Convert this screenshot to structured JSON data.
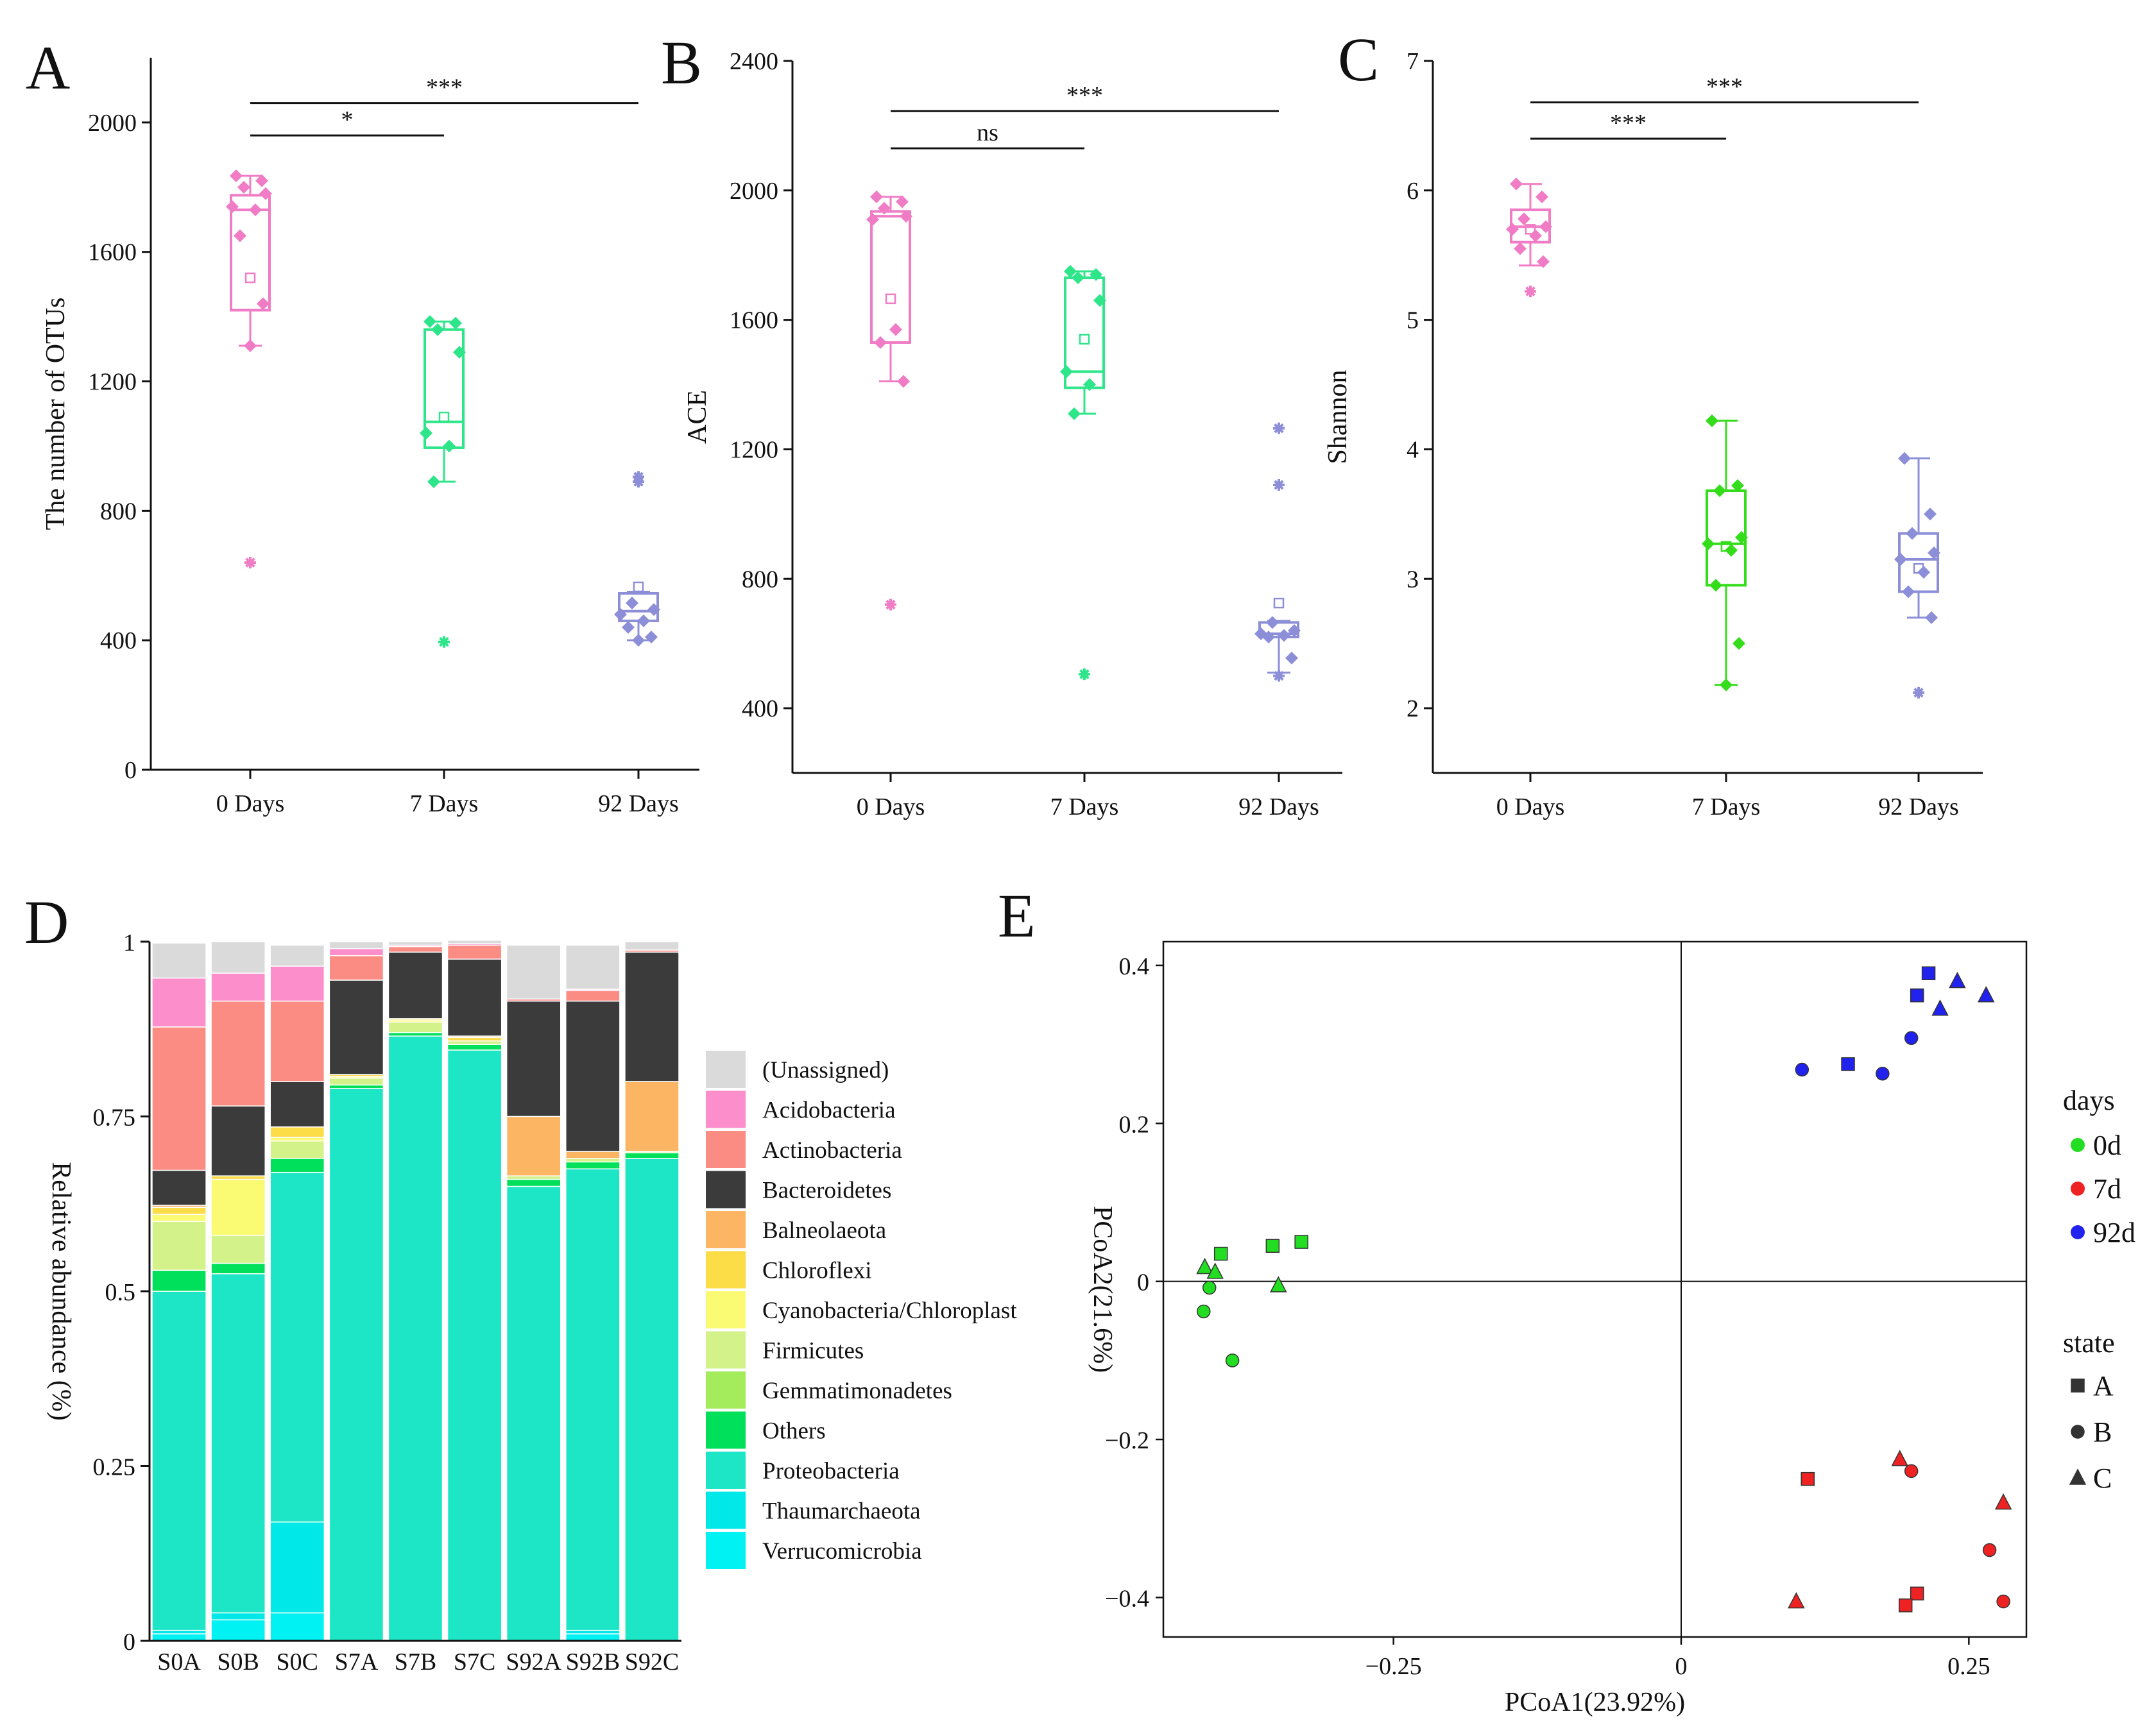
{
  "chart_data": [
    {
      "panel": "A",
      "type": "box",
      "ylabel": "The number of OTUs",
      "categories": [
        "0 Days",
        "7 Days",
        "92 Days"
      ],
      "ylim": [
        0,
        2200
      ],
      "yticks": [
        0,
        400,
        800,
        1200,
        1600,
        2000
      ],
      "colors": [
        "#f07cc6",
        "#2ee58a",
        "#8c8fd8"
      ],
      "boxes": [
        {
          "q1": 1420,
          "median": 1730,
          "q3": 1775,
          "wlo": 1310,
          "whi": 1835,
          "mean": 1520,
          "points": [
            1835,
            1820,
            1800,
            1780,
            1740,
            1730,
            1650,
            1440,
            1310,
            640
          ]
        },
        {
          "q1": 995,
          "median": 1075,
          "q3": 1360,
          "wlo": 890,
          "whi": 1385,
          "mean": 1090,
          "points": [
            1385,
            1380,
            1360,
            1290,
            1040,
            1000,
            890,
            395
          ]
        },
        {
          "q1": 460,
          "median": 490,
          "q3": 545,
          "wlo": 400,
          "whi": 550,
          "mean": 565,
          "points": [
            905,
            890,
            515,
            495,
            480,
            460,
            440,
            410,
            400
          ]
        }
      ],
      "sig": [
        {
          "from": 0,
          "to": 2,
          "label": "***",
          "y": 2060
        },
        {
          "from": 0,
          "to": 1,
          "label": "*",
          "y": 1960
        }
      ]
    },
    {
      "panel": "B",
      "type": "box",
      "ylabel": "ACE",
      "categories": [
        "0 Days",
        "7 Days",
        "92 Days"
      ],
      "ylim": [
        200,
        2400
      ],
      "yticks": [
        400,
        800,
        1200,
        1600,
        2000,
        2400
      ],
      "colors": [
        "#f07cc6",
        "#2ee58a",
        "#8c8fd8"
      ],
      "boxes": [
        {
          "q1": 1530,
          "median": 1920,
          "q3": 1935,
          "wlo": 1410,
          "whi": 1980,
          "mean": 1665,
          "points": [
            1980,
            1965,
            1945,
            1920,
            1910,
            1570,
            1530,
            1410,
            720
          ]
        },
        {
          "q1": 1390,
          "median": 1440,
          "q3": 1730,
          "wlo": 1310,
          "whi": 1750,
          "mean": 1540,
          "points": [
            1750,
            1740,
            1730,
            1660,
            1440,
            1400,
            1310,
            505
          ]
        },
        {
          "q1": 620,
          "median": 630,
          "q3": 665,
          "wlo": 510,
          "whi": 670,
          "mean": 725,
          "points": [
            1265,
            1090,
            665,
            640,
            630,
            625,
            620,
            555,
            500
          ]
        }
      ],
      "sig": [
        {
          "from": 0,
          "to": 2,
          "label": "***",
          "y": 2245
        },
        {
          "from": 0,
          "to": 1,
          "label": "ns",
          "y": 2130
        }
      ]
    },
    {
      "panel": "C",
      "type": "box",
      "ylabel": "Shannon",
      "categories": [
        "0 Days",
        "7 Days",
        "92 Days"
      ],
      "ylim": [
        1.5,
        7
      ],
      "yticks": [
        2,
        3,
        4,
        5,
        6,
        7
      ],
      "colors": [
        "#f07cc6",
        "#33dd1a",
        "#8c8fd8"
      ],
      "boxes": [
        {
          "q1": 5.6,
          "median": 5.72,
          "q3": 5.85,
          "wlo": 5.42,
          "whi": 6.05,
          "mean": 5.7,
          "points": [
            6.05,
            5.95,
            5.78,
            5.72,
            5.7,
            5.65,
            5.55,
            5.45,
            5.22
          ]
        },
        {
          "q1": 2.95,
          "median": 3.27,
          "q3": 3.68,
          "wlo": 2.18,
          "whi": 4.22,
          "mean": 3.25,
          "points": [
            4.22,
            3.72,
            3.68,
            3.32,
            3.27,
            3.22,
            2.95,
            2.5,
            2.18
          ]
        },
        {
          "q1": 2.9,
          "median": 3.15,
          "q3": 3.35,
          "wlo": 2.7,
          "whi": 3.93,
          "mean": 3.08,
          "points": [
            3.93,
            3.5,
            3.35,
            3.2,
            3.15,
            3.05,
            2.9,
            2.7,
            2.12
          ]
        }
      ],
      "sig": [
        {
          "from": 0,
          "to": 2,
          "label": "***",
          "y": 6.68
        },
        {
          "from": 0,
          "to": 1,
          "label": "***",
          "y": 6.4
        }
      ]
    },
    {
      "panel": "D",
      "type": "bar",
      "stacked": true,
      "ylabel": "Relative abundance (%)",
      "ylim": [
        0,
        1
      ],
      "yticks": [
        0,
        0.25,
        0.5,
        0.75,
        1
      ],
      "ytick_labels": [
        "0",
        "0.25",
        "0.5",
        "0.75",
        "1"
      ],
      "categories": [
        "S0A",
        "S0B",
        "S0C",
        "S7A",
        "S7B",
        "S7C",
        "S92A",
        "S92B",
        "S92C"
      ],
      "series": [
        {
          "name": "Verrucomicrobia",
          "color": "#00f2f2",
          "values": [
            0.01,
            0.03,
            0.04,
            0.0,
            0.0,
            0.0,
            0.0,
            0.01,
            0.0
          ]
        },
        {
          "name": "Thaumarchaeota",
          "color": "#00e8e8",
          "values": [
            0.005,
            0.01,
            0.13,
            0.0,
            0.0,
            0.0,
            0.0,
            0.005,
            0.0
          ]
        },
        {
          "name": "Proteobacteria",
          "color": "#1de6c6",
          "values": [
            0.485,
            0.485,
            0.5,
            0.79,
            0.865,
            0.845,
            0.65,
            0.66,
            0.69
          ]
        },
        {
          "name": "Others",
          "color": "#00e05a",
          "values": [
            0.03,
            0.015,
            0.02,
            0.005,
            0.005,
            0.008,
            0.01,
            0.01,
            0.008
          ]
        },
        {
          "name": "Gemmatimonadetes",
          "color": "#a4ec5c",
          "values": [
            0.0,
            0.0,
            0.0,
            0.0,
            0.0,
            0.0,
            0.0,
            0.0,
            0.0
          ]
        },
        {
          "name": "Firmicutes",
          "color": "#d4f28a",
          "values": [
            0.07,
            0.04,
            0.025,
            0.01,
            0.015,
            0.005,
            0.005,
            0.005,
            0.002
          ]
        },
        {
          "name": "Cyanobacteria/Chloroplast",
          "color": "#fafa73",
          "values": [
            0.01,
            0.08,
            0.005,
            0.002,
            0.003,
            0.0,
            0.0,
            0.0,
            0.0
          ]
        },
        {
          "name": "Chloroflexi",
          "color": "#fcdc47",
          "values": [
            0.01,
            0.005,
            0.015,
            0.003,
            0.002,
            0.005,
            0.0,
            0.0,
            0.0
          ]
        },
        {
          "name": "Balneolaeota",
          "color": "#fbb563",
          "values": [
            0.003,
            0.0,
            0.0,
            0.0,
            0.0,
            0.002,
            0.085,
            0.01,
            0.1
          ]
        },
        {
          "name": "Bacteroidetes",
          "color": "#3b3b3b",
          "values": [
            0.05,
            0.1,
            0.065,
            0.135,
            0.095,
            0.11,
            0.165,
            0.215,
            0.185
          ]
        },
        {
          "name": "Actinobacteria",
          "color": "#fb8c84",
          "values": [
            0.205,
            0.15,
            0.115,
            0.035,
            0.008,
            0.02,
            0.003,
            0.015,
            0.003
          ]
        },
        {
          "name": "Acidobacteria",
          "color": "#fb8ecb",
          "values": [
            0.07,
            0.04,
            0.05,
            0.01,
            0.002,
            0.002,
            0.0,
            0.002,
            0.0
          ]
        },
        {
          "name": "(Unassigned)",
          "color": "#dadada",
          "values": [
            0.05,
            0.045,
            0.03,
            0.01,
            0.005,
            0.005,
            0.077,
            0.063,
            0.012
          ]
        }
      ],
      "legend_order": [
        "(Unassigned)",
        "Acidobacteria",
        "Actinobacteria",
        "Bacteroidetes",
        "Balneolaeota",
        "Chloroflexi",
        "Cyanobacteria/Chloroplast",
        "Firmicutes",
        "Gemmatimonadetes",
        "Others",
        "Proteobacteria",
        "Thaumarchaeota",
        "Verrucomicrobia"
      ]
    },
    {
      "panel": "E",
      "type": "scatter",
      "xlabel": "PCoA1(23.92%)",
      "ylabel": "PCoA2(21.6%)",
      "xlim": [
        -0.45,
        0.3
      ],
      "ylim": [
        -0.45,
        0.43
      ],
      "xticks": [
        -0.25,
        0,
        0.25
      ],
      "xtick_labels": [
        "−0.25",
        "0",
        "0.25"
      ],
      "yticks": [
        -0.4,
        -0.2,
        0,
        0.2,
        0.4
      ],
      "ytick_labels": [
        "−0.4",
        "−0.2",
        "0",
        "0.2",
        "0.4"
      ],
      "legend_days_title": "days",
      "legend_days": [
        {
          "label": "0d",
          "color": "#22dd22"
        },
        {
          "label": "7d",
          "color": "#ee2222"
        },
        {
          "label": "92d",
          "color": "#2222ee"
        }
      ],
      "legend_state_title": "state",
      "legend_state": [
        {
          "label": "A",
          "shape": "square"
        },
        {
          "label": "B",
          "shape": "circle"
        },
        {
          "label": "C",
          "shape": "triangle"
        }
      ],
      "points": [
        {
          "x": -0.33,
          "y": 0.05,
          "days": "0d",
          "state": "A"
        },
        {
          "x": -0.355,
          "y": 0.045,
          "days": "0d",
          "state": "A"
        },
        {
          "x": -0.4,
          "y": 0.035,
          "days": "0d",
          "state": "A"
        },
        {
          "x": -0.41,
          "y": -0.008,
          "days": "0d",
          "state": "B"
        },
        {
          "x": -0.415,
          "y": -0.038,
          "days": "0d",
          "state": "B"
        },
        {
          "x": -0.39,
          "y": -0.1,
          "days": "0d",
          "state": "B"
        },
        {
          "x": -0.414,
          "y": 0.018,
          "days": "0d",
          "state": "C"
        },
        {
          "x": -0.405,
          "y": 0.012,
          "days": "0d",
          "state": "C"
        },
        {
          "x": -0.35,
          "y": -0.005,
          "days": "0d",
          "state": "C"
        },
        {
          "x": 0.11,
          "y": -0.25,
          "days": "7d",
          "state": "A"
        },
        {
          "x": 0.205,
          "y": -0.395,
          "days": "7d",
          "state": "A"
        },
        {
          "x": 0.195,
          "y": -0.41,
          "days": "7d",
          "state": "A"
        },
        {
          "x": 0.2,
          "y": -0.24,
          "days": "7d",
          "state": "B"
        },
        {
          "x": 0.268,
          "y": -0.34,
          "days": "7d",
          "state": "B"
        },
        {
          "x": 0.28,
          "y": -0.405,
          "days": "7d",
          "state": "B"
        },
        {
          "x": 0.19,
          "y": -0.225,
          "days": "7d",
          "state": "C"
        },
        {
          "x": 0.28,
          "y": -0.28,
          "days": "7d",
          "state": "C"
        },
        {
          "x": 0.1,
          "y": -0.405,
          "days": "7d",
          "state": "C"
        },
        {
          "x": 0.215,
          "y": 0.39,
          "days": "92d",
          "state": "A"
        },
        {
          "x": 0.205,
          "y": 0.362,
          "days": "92d",
          "state": "A"
        },
        {
          "x": 0.145,
          "y": 0.275,
          "days": "92d",
          "state": "A"
        },
        {
          "x": 0.2,
          "y": 0.308,
          "days": "92d",
          "state": "B"
        },
        {
          "x": 0.105,
          "y": 0.268,
          "days": "92d",
          "state": "B"
        },
        {
          "x": 0.175,
          "y": 0.263,
          "days": "92d",
          "state": "B"
        },
        {
          "x": 0.24,
          "y": 0.38,
          "days": "92d",
          "state": "C"
        },
        {
          "x": 0.265,
          "y": 0.362,
          "days": "92d",
          "state": "C"
        },
        {
          "x": 0.225,
          "y": 0.345,
          "days": "92d",
          "state": "C"
        }
      ]
    }
  ]
}
